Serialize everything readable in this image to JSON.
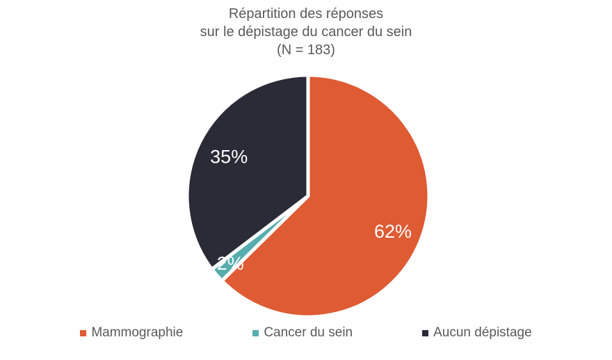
{
  "title": {
    "lines": [
      "Répartition des réponses",
      "sur le dépistage du cancer du sein",
      "(N = 183)"
    ]
  },
  "chart_data": {
    "type": "pie",
    "title": "Répartition des réponses sur le dépistage du cancer du sein (N = 183)",
    "sample_size_text": "(N = 183)",
    "categories": [
      "Mammographie",
      "Cancer du sein",
      "Aucun dépistage"
    ],
    "values": [
      62,
      2,
      35
    ],
    "unit": "%",
    "data_labels": [
      "62%",
      "2%",
      "35%"
    ],
    "colors": [
      "#DE5B33",
      "#57ADAE",
      "#2B2B38"
    ],
    "slice_border_color": "#FFFFFF",
    "label_color": "#FFFFFF",
    "start_angle_deg": 0,
    "direction": "clockwise",
    "label_radius": [
      0.76,
      0.85,
      0.73
    ],
    "legend_position": "bottom"
  },
  "legend": {
    "items": [
      {
        "label": "Mammographie",
        "color": "#DE5B33"
      },
      {
        "label": "Cancer du sein",
        "color": "#57ADAE"
      },
      {
        "label": "Aucun dépistage",
        "color": "#2B2B38"
      }
    ]
  },
  "colors": {
    "background": "#FFFFFF",
    "title_text": "#595959",
    "legend_text": "#595959"
  }
}
